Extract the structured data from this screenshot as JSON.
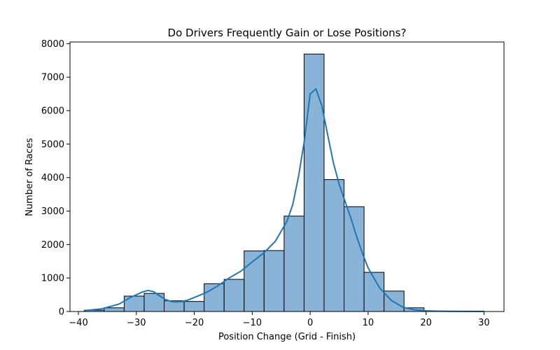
{
  "chart_data": {
    "type": "bar",
    "title": "Do Drivers Frequently Gain or Lose Positions?",
    "xlabel": "Position Change (Grid - Finish)",
    "ylabel": "Number of Races",
    "xlim": [
      -41.45,
      33.45
    ],
    "ylim": [
      0,
      8050
    ],
    "xticks": [
      -40,
      -30,
      -20,
      -10,
      0,
      10,
      20,
      30
    ],
    "yticks": [
      0,
      1000,
      2000,
      3000,
      4000,
      5000,
      6000,
      7000,
      8000
    ],
    "bin_edges": [
      -39,
      -35.55,
      -32.1,
      -28.65,
      -25.2,
      -21.75,
      -18.3,
      -14.85,
      -11.4,
      -7.95,
      -4.5,
      -1.05,
      2.4,
      5.85,
      9.3,
      12.75,
      16.2,
      19.65,
      23.1,
      26.55,
      30
    ],
    "values": [
      40,
      110,
      460,
      540,
      320,
      300,
      830,
      960,
      1810,
      1820,
      2850,
      7690,
      3940,
      3130,
      1170,
      610,
      110,
      10,
      5,
      5
    ],
    "kde": {
      "x": [
        -39,
        -36,
        -33,
        -31,
        -29,
        -28,
        -27,
        -26,
        -25,
        -24,
        -23,
        -22,
        -21,
        -20,
        -18,
        -16,
        -14,
        -12,
        -10,
        -8,
        -6,
        -4,
        -3,
        -2,
        -1,
        0,
        1,
        2,
        3,
        4,
        5,
        6,
        7,
        8,
        9,
        10,
        12,
        14,
        16,
        18,
        20,
        22,
        25,
        30
      ],
      "y": [
        30,
        80,
        220,
        420,
        580,
        630,
        590,
        470,
        360,
        300,
        285,
        300,
        350,
        420,
        560,
        760,
        1000,
        1200,
        1480,
        1750,
        2100,
        2700,
        3200,
        4050,
        5100,
        6500,
        6650,
        6150,
        5300,
        4450,
        3800,
        3300,
        2800,
        2250,
        1750,
        1300,
        700,
        330,
        130,
        50,
        20,
        10,
        5,
        2
      ]
    },
    "bar_color": "#8ab4d7",
    "bar_edge_color": "#000000",
    "line_color": "#1f77b4",
    "grid": false,
    "legend": "none"
  }
}
